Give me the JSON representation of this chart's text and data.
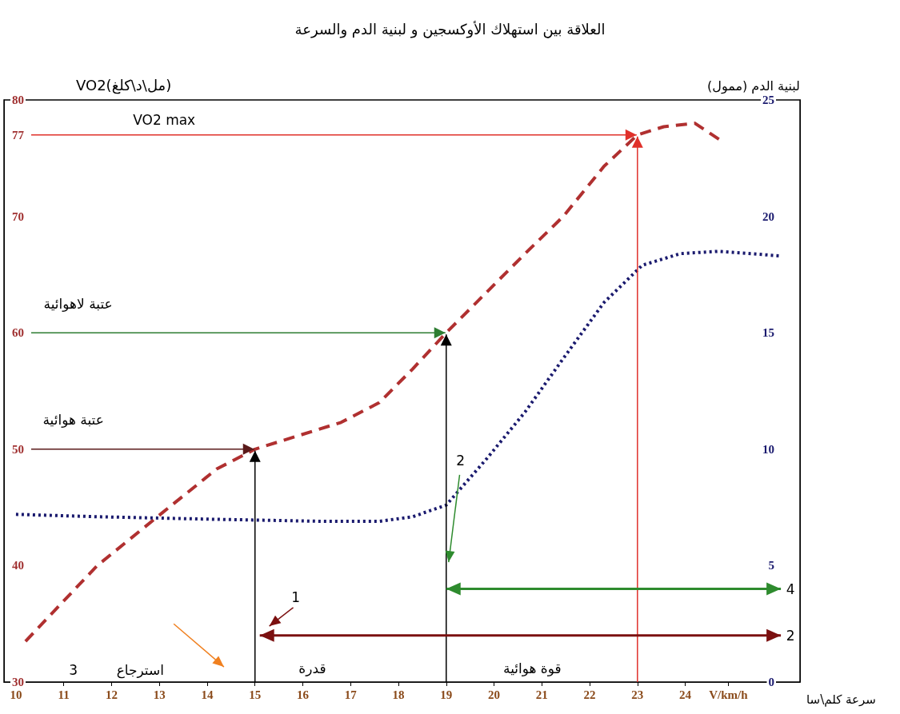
{
  "chart_data": {
    "type": "line",
    "title": "العلاقة بين استهلاك الأوكسجين و لبنية الدم والسرعة",
    "xlabel": "سرعة كلم\\سا",
    "ylabel": "VO2(مل\\د\\كلغ)",
    "y2label": "لبنية الدم (ممول)",
    "xlim": [
      9.75,
      26.4
    ],
    "xticks": [
      10,
      11,
      12,
      13,
      14,
      15,
      16,
      17,
      18,
      19,
      20,
      21,
      22,
      23,
      24,
      {
        "value": 24.9,
        "label": "V/km/h"
      }
    ],
    "ylim": [
      30,
      80
    ],
    "yticks": [
      30,
      40,
      50,
      60,
      70,
      77,
      80
    ],
    "y2lim": [
      0,
      25
    ],
    "y2ticks": [
      0,
      5,
      10,
      15,
      20,
      25
    ],
    "series": [
      {
        "color": "#b03030",
        "line_style": "dashed",
        "marker": "none",
        "x": [
          10.2,
          11.7,
          13.05,
          14.2,
          15,
          16.8,
          17.6,
          18.3,
          19,
          19.85,
          20.65,
          21.45,
          22.3,
          23,
          23.55,
          24.2,
          24.75
        ],
        "values": [
          33.5,
          40,
          44.5,
          48.3,
          50,
          52.3,
          54,
          56.9,
          60,
          63.5,
          66.8,
          70,
          74.3,
          77,
          77.7,
          78,
          76.5
        ]
      },
      {
        "axis": "y2",
        "color": "#1a1a6e",
        "line_style": "dotted",
        "marker": "none",
        "x": [
          10,
          11.7,
          13.9,
          16.45,
          17.6,
          18.3,
          19,
          19.85,
          20.65,
          21.45,
          22.3,
          23.1,
          23.9,
          24.7,
          26
        ],
        "values": [
          7.2,
          7.1,
          7,
          6.9,
          6.9,
          7.1,
          7.6,
          9.6,
          11.6,
          13.9,
          16.3,
          17.9,
          18.4,
          18.5,
          18.3
        ]
      }
    ],
    "annotations": [
      "VO2 max",
      "عتبة لاهوائية",
      "عتبة هوائية",
      "3",
      "استرجاع",
      "قدرة",
      "قوة هوائية",
      "1",
      "2",
      "4",
      "2"
    ]
  }
}
